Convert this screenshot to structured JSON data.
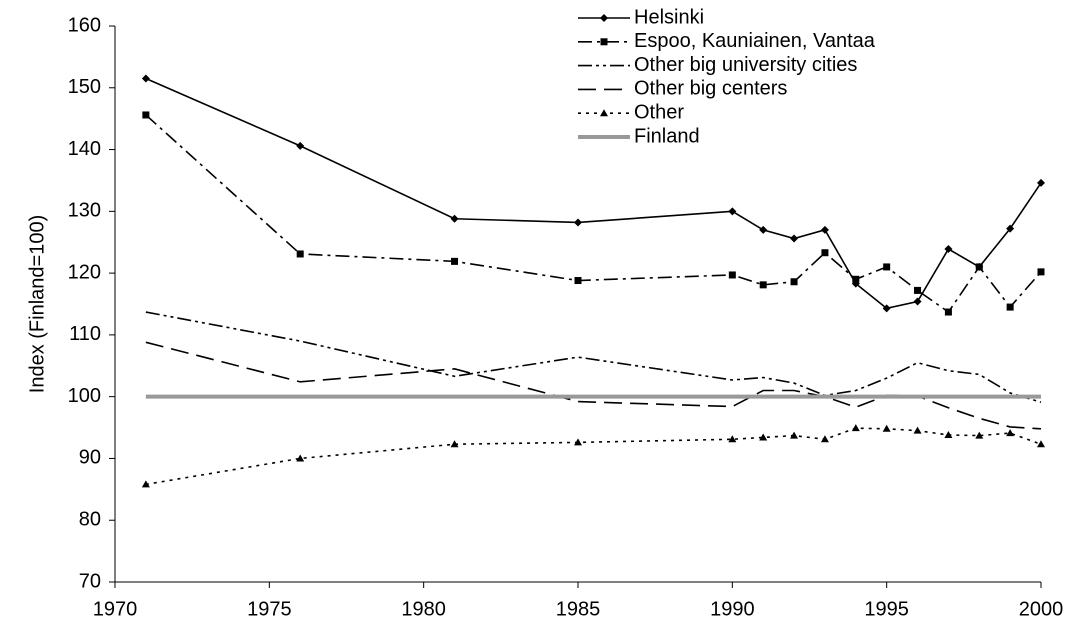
{
  "chart_data": {
    "type": "line",
    "y_label": "Index (Finland=100)",
    "x": [
      1971,
      1976,
      1981,
      1985,
      1990,
      1991,
      1992,
      1993,
      1994,
      1995,
      1996,
      1997,
      1998,
      1999,
      2000
    ],
    "xlim": [
      1970,
      2000
    ],
    "xticks": [
      1970,
      1975,
      1980,
      1985,
      1990,
      1995,
      2000
    ],
    "ylim": [
      70,
      160
    ],
    "yticks": [
      70,
      80,
      90,
      100,
      110,
      120,
      130,
      140,
      150,
      160
    ],
    "grid": false,
    "legend": "top-right",
    "series": [
      {
        "name": "Helsinki",
        "color": "#000000",
        "dash": "solid",
        "marker": "diamond",
        "values": [
          151.5,
          140.6,
          128.8,
          128.2,
          130.0,
          127.0,
          125.6,
          127.0,
          118.3,
          114.3,
          115.4,
          123.9,
          121.0,
          127.2,
          134.6
        ]
      },
      {
        "name": "Espoo, Kauniainen, Vantaa",
        "color": "#000000",
        "dash": "dashdot",
        "marker": "square",
        "values": [
          145.6,
          123.1,
          121.9,
          118.8,
          119.7,
          118.1,
          118.6,
          123.3,
          119.0,
          121.0,
          117.2,
          113.7,
          121.0,
          114.5,
          120.2
        ]
      },
      {
        "name": "Other big university cities",
        "color": "#000000",
        "dash": "dashdotdot",
        "marker": "none",
        "values": [
          113.7,
          109.0,
          103.3,
          106.4,
          102.7,
          103.1,
          102.2,
          100.2,
          101.0,
          103.0,
          105.5,
          104.2,
          103.6,
          100.6,
          99.1
        ]
      },
      {
        "name": "Other big centers",
        "color": "#000000",
        "dash": "longdash",
        "marker": "none",
        "values": [
          108.8,
          102.4,
          104.5,
          99.2,
          98.4,
          101.0,
          101.0,
          100.0,
          98.3,
          100.2,
          100.1,
          98.2,
          96.5,
          95.1,
          94.8
        ]
      },
      {
        "name": "Other",
        "color": "#000000",
        "dash": "dotted",
        "marker": "triangle",
        "values": [
          85.8,
          90.0,
          92.3,
          92.6,
          93.1,
          93.4,
          93.7,
          93.1,
          94.9,
          94.8,
          94.5,
          93.8,
          93.7,
          94.1,
          92.3
        ]
      },
      {
        "name": "Finland",
        "color": "#999999",
        "dash": "solid",
        "marker": "none",
        "width": 4,
        "values": [
          100,
          100,
          100,
          100,
          100,
          100,
          100,
          100,
          100,
          100,
          100,
          100,
          100,
          100,
          100
        ]
      }
    ]
  }
}
